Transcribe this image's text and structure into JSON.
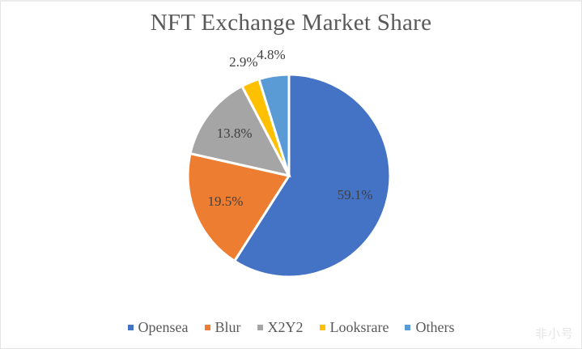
{
  "chart_data": {
    "type": "pie",
    "title": "NFT Exchange Market Share",
    "categories": [
      "Opensea",
      "Blur",
      "X2Y2",
      "Looksrare",
      "Others"
    ],
    "values": [
      59.1,
      19.5,
      13.8,
      2.9,
      4.8
    ],
    "labels": [
      "59.1%",
      "19.5%",
      "13.8%",
      "2.9%",
      "4.8%"
    ],
    "colors": [
      "#4472C4",
      "#ED7D31",
      "#A5A5A5",
      "#FFC000",
      "#5B9BD5"
    ],
    "start_angle": "12 o'clock, clockwise",
    "legend_position": "bottom"
  },
  "legend": {
    "items": [
      {
        "label": "Opensea",
        "color": "#4472C4"
      },
      {
        "label": "Blur",
        "color": "#ED7D31"
      },
      {
        "label": "X2Y2",
        "color": "#A5A5A5"
      },
      {
        "label": "Looksrare",
        "color": "#FFC000"
      },
      {
        "label": "Others",
        "color": "#5B9BD5"
      }
    ]
  },
  "watermark": "非小号"
}
